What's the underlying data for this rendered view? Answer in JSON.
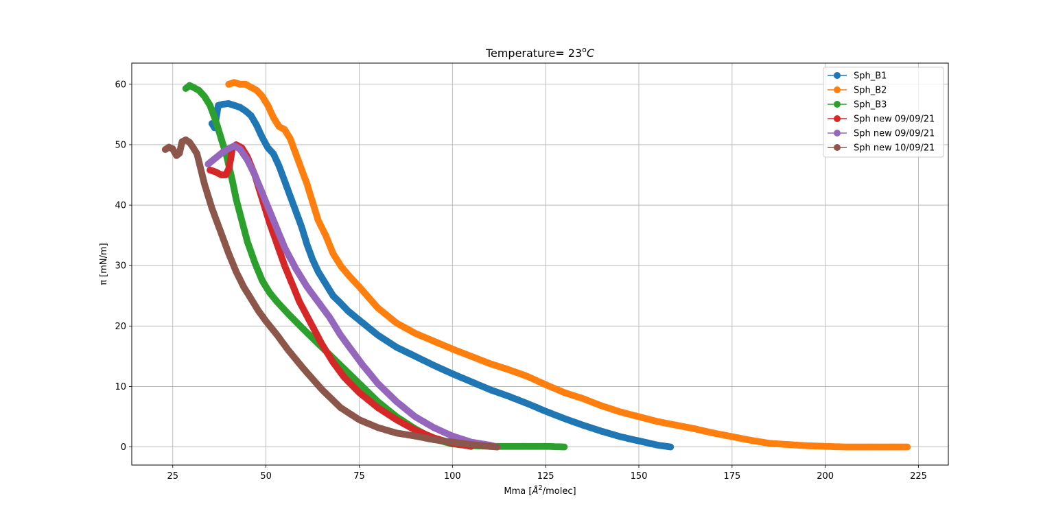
{
  "chart_data": {
    "type": "scatter",
    "title": "Temperature= 23",
    "title_superscript": "o",
    "title_unit": "C",
    "xlabel": "Mma [",
    "xlabel_unit": "Å",
    "xlabel_superscript": "2",
    "xlabel_suffix": "/molec]",
    "ylabel": "π [mN/m]",
    "xlim": [
      14,
      233
    ],
    "ylim": [
      -3,
      63.5
    ],
    "xticks": [
      25,
      50,
      75,
      100,
      125,
      150,
      175,
      200,
      225
    ],
    "yticks": [
      0,
      10,
      20,
      30,
      40,
      50,
      60
    ],
    "grid": true,
    "legend_position": "top-right",
    "series": [
      {
        "name": "Sph_B1",
        "color": "#1f77b4",
        "points": [
          [
            35.5,
            53.5
          ],
          [
            36.2,
            52.8
          ],
          [
            36.8,
            55
          ],
          [
            37.2,
            56.5
          ],
          [
            38.5,
            56.7
          ],
          [
            40,
            56.8
          ],
          [
            41.5,
            56.5
          ],
          [
            43,
            56.2
          ],
          [
            44.5,
            55.6
          ],
          [
            46,
            54.8
          ],
          [
            47.5,
            53.2
          ],
          [
            49,
            51.2
          ],
          [
            50.5,
            49.5
          ],
          [
            52,
            48.5
          ],
          [
            53.5,
            46.5
          ],
          [
            55,
            44
          ],
          [
            56.5,
            41.5
          ],
          [
            58,
            39
          ],
          [
            59.5,
            36.5
          ],
          [
            61,
            33.5
          ],
          [
            62.5,
            31
          ],
          [
            64,
            29
          ],
          [
            66,
            27
          ],
          [
            68,
            25
          ],
          [
            70,
            23.8
          ],
          [
            72,
            22.5
          ],
          [
            75,
            21
          ],
          [
            80,
            18.5
          ],
          [
            85,
            16.5
          ],
          [
            90,
            15
          ],
          [
            95,
            13.5
          ],
          [
            100,
            12.1
          ],
          [
            105,
            10.8
          ],
          [
            110,
            9.5
          ],
          [
            115,
            8.4
          ],
          [
            120,
            7.2
          ],
          [
            125,
            5.9
          ],
          [
            130,
            4.7
          ],
          [
            135,
            3.6
          ],
          [
            140,
            2.6
          ],
          [
            145,
            1.7
          ],
          [
            150,
            1
          ],
          [
            155,
            0.3
          ],
          [
            158.5,
            0
          ]
        ]
      },
      {
        "name": "Sph_B2",
        "color": "#ff7f0e",
        "points": [
          [
            40,
            60
          ],
          [
            41.5,
            60.3
          ],
          [
            43,
            60
          ],
          [
            44.5,
            60
          ],
          [
            46,
            59.5
          ],
          [
            47.5,
            59
          ],
          [
            49,
            58
          ],
          [
            50.5,
            56.5
          ],
          [
            52,
            54.5
          ],
          [
            53.5,
            53
          ],
          [
            55,
            52.5
          ],
          [
            56.5,
            51
          ],
          [
            58,
            48.5
          ],
          [
            59.5,
            46
          ],
          [
            61,
            43.5
          ],
          [
            62.5,
            40.5
          ],
          [
            64,
            37.5
          ],
          [
            66,
            35
          ],
          [
            68,
            32
          ],
          [
            70,
            30
          ],
          [
            72,
            28.5
          ],
          [
            75,
            26.5
          ],
          [
            80,
            23
          ],
          [
            85,
            20.5
          ],
          [
            90,
            18.8
          ],
          [
            95,
            17.5
          ],
          [
            100,
            16.2
          ],
          [
            105,
            15
          ],
          [
            110,
            13.8
          ],
          [
            115,
            12.8
          ],
          [
            120,
            11.7
          ],
          [
            125,
            10.3
          ],
          [
            130,
            9
          ],
          [
            135,
            8
          ],
          [
            140,
            6.8
          ],
          [
            145,
            5.8
          ],
          [
            150,
            5
          ],
          [
            155,
            4.2
          ],
          [
            160,
            3.6
          ],
          [
            165,
            3
          ],
          [
            170,
            2.3
          ],
          [
            175,
            1.7
          ],
          [
            180,
            1.1
          ],
          [
            185,
            0.6
          ],
          [
            190,
            0.4
          ],
          [
            195,
            0.2
          ],
          [
            200,
            0.1
          ],
          [
            205,
            0
          ],
          [
            215,
            0
          ],
          [
            222,
            0
          ]
        ]
      },
      {
        "name": "Sph_B3",
        "color": "#2ca02c",
        "points": [
          [
            28.5,
            59.3
          ],
          [
            29.5,
            59.8
          ],
          [
            30.5,
            59.5
          ],
          [
            32,
            59
          ],
          [
            33.5,
            58
          ],
          [
            35,
            56.5
          ],
          [
            36.5,
            54
          ],
          [
            38,
            51
          ],
          [
            39.5,
            48
          ],
          [
            41,
            44
          ],
          [
            42,
            41
          ],
          [
            43.5,
            37.5
          ],
          [
            45,
            34
          ],
          [
            47,
            30.5
          ],
          [
            49,
            27.5
          ],
          [
            51,
            25.5
          ],
          [
            53,
            24
          ],
          [
            56,
            22
          ],
          [
            60,
            19.5
          ],
          [
            65,
            16.5
          ],
          [
            70,
            13.5
          ],
          [
            75,
            10.5
          ],
          [
            80,
            7.5
          ],
          [
            85,
            5
          ],
          [
            90,
            3
          ],
          [
            95,
            1.3
          ],
          [
            100,
            0.5
          ],
          [
            105,
            0.2
          ],
          [
            110,
            0.1
          ],
          [
            115,
            0.1
          ],
          [
            120,
            0.1
          ],
          [
            125,
            0.1
          ],
          [
            130,
            0
          ]
        ]
      },
      {
        "name": "Sph new 09/09/21",
        "color": "#d62728",
        "points": [
          [
            35,
            45.8
          ],
          [
            36.5,
            45.5
          ],
          [
            38,
            45
          ],
          [
            39.2,
            45
          ],
          [
            40,
            46
          ],
          [
            40.5,
            47.5
          ],
          [
            41,
            49.5
          ],
          [
            42,
            50
          ],
          [
            43.5,
            49.5
          ],
          [
            45,
            48
          ],
          [
            47,
            45
          ],
          [
            49,
            41
          ],
          [
            51,
            37
          ],
          [
            53,
            33.5
          ],
          [
            55,
            30
          ],
          [
            57,
            27
          ],
          [
            59,
            24
          ],
          [
            62,
            20.5
          ],
          [
            65,
            17
          ],
          [
            68,
            14
          ],
          [
            71,
            11.5
          ],
          [
            75,
            9
          ],
          [
            80,
            6.5
          ],
          [
            85,
            4.5
          ],
          [
            90,
            2.8
          ],
          [
            95,
            1.5
          ],
          [
            100,
            0.6
          ],
          [
            105,
            0.1
          ]
        ]
      },
      {
        "name": "Sph new 09/09/21",
        "color": "#9467bd",
        "points": [
          [
            34.5,
            46.8
          ],
          [
            35.5,
            47.3
          ],
          [
            36.5,
            47.8
          ],
          [
            37.5,
            48.3
          ],
          [
            38.5,
            48.8
          ],
          [
            39.5,
            49.2
          ],
          [
            40.5,
            49.5
          ],
          [
            41.5,
            49.8
          ],
          [
            43,
            49.3
          ],
          [
            45,
            47.5
          ],
          [
            47,
            45
          ],
          [
            49,
            42
          ],
          [
            51,
            39
          ],
          [
            53,
            36
          ],
          [
            55,
            33
          ],
          [
            58,
            29.5
          ],
          [
            61,
            26.5
          ],
          [
            64,
            24
          ],
          [
            67,
            21.5
          ],
          [
            70,
            18.5
          ],
          [
            73,
            16
          ],
          [
            76,
            13.5
          ],
          [
            80,
            10.5
          ],
          [
            85,
            7.5
          ],
          [
            90,
            5
          ],
          [
            95,
            3.2
          ],
          [
            100,
            1.8
          ],
          [
            105,
            0.8
          ],
          [
            110,
            0.3
          ],
          [
            112,
            0
          ]
        ]
      },
      {
        "name": "Sph new 10/09/21",
        "color": "#8c564b",
        "points": [
          [
            23,
            49.2
          ],
          [
            24,
            49.6
          ],
          [
            25,
            49.3
          ],
          [
            26,
            48.2
          ],
          [
            26.8,
            48.6
          ],
          [
            27.5,
            50.5
          ],
          [
            28.5,
            50.8
          ],
          [
            29.5,
            50.4
          ],
          [
            30.5,
            49.5
          ],
          [
            31.5,
            48.5
          ],
          [
            32.5,
            46
          ],
          [
            33.5,
            43.5
          ],
          [
            34.5,
            41.5
          ],
          [
            35.5,
            39.5
          ],
          [
            37,
            37
          ],
          [
            38.5,
            34.5
          ],
          [
            40,
            32
          ],
          [
            42,
            29
          ],
          [
            44,
            26.5
          ],
          [
            46,
            24.5
          ],
          [
            48,
            22.5
          ],
          [
            50,
            20.8
          ],
          [
            53,
            18.5
          ],
          [
            56,
            16
          ],
          [
            60,
            13
          ],
          [
            65,
            9.5
          ],
          [
            70,
            6.5
          ],
          [
            75,
            4.5
          ],
          [
            80,
            3.2
          ],
          [
            85,
            2.3
          ],
          [
            90,
            1.8
          ],
          [
            95,
            1.2
          ],
          [
            100,
            0.8
          ],
          [
            105,
            0.4
          ],
          [
            110,
            0.1
          ],
          [
            112,
            0
          ]
        ]
      }
    ]
  }
}
